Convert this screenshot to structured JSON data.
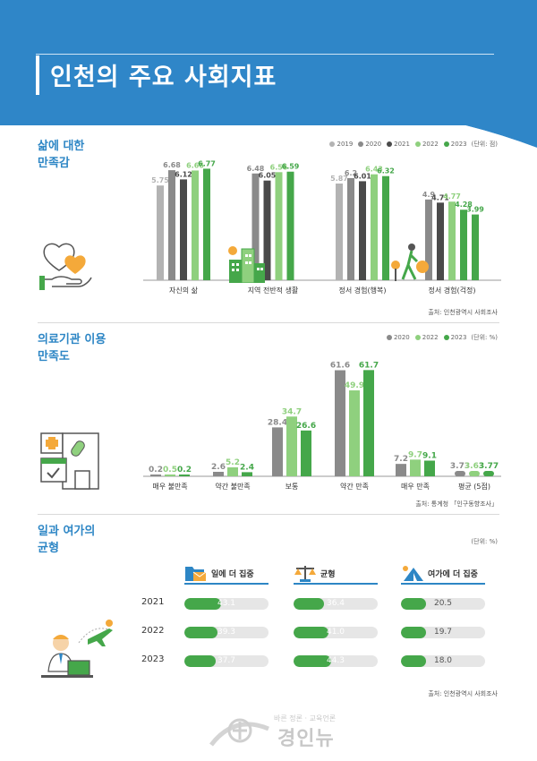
{
  "page_title": "인천의 주요 사회지표",
  "palette": {
    "c2019": "#b3b3b3",
    "c2020": "#8a8a8a",
    "c2021": "#4a4a4a",
    "c2022": "#8fd07e",
    "c2023": "#45a74a",
    "brand": "#2f86c8"
  },
  "sections": {
    "life": {
      "title_line1": "삶에 대한",
      "title_line2": "만족감",
      "unit": "(단위: 점)",
      "source": "출처: 인천광역시 사회조사"
    },
    "medical": {
      "title_line1": "의료기관 이용",
      "title_line2": "만족도",
      "unit": "(단위: %)",
      "source": "출처: 통계청 「인구동향조사」"
    },
    "worklife": {
      "title_line1": "일과 여가의",
      "title_line2": "균형",
      "unit": "(단위: %)",
      "source": "출처: 인천광역시 사회조사"
    }
  },
  "legend_life": [
    "2019",
    "2020",
    "2021",
    "2022",
    "2023"
  ],
  "legend_medical": [
    "2020",
    "2022",
    "2023"
  ],
  "chart_data": [
    {
      "type": "bar",
      "title": "삶에 대한 만족감",
      "unit": "(단위: 점)",
      "categories": [
        "자신의 삶",
        "지역 전반적 생활",
        "정서 경험(행복)",
        "정서 경험(걱정)"
      ],
      "series": [
        {
          "name": "2019",
          "values": [
            5.75,
            null,
            5.87,
            null
          ]
        },
        {
          "name": "2020",
          "values": [
            6.68,
            6.48,
            6.2,
            4.9
          ]
        },
        {
          "name": "2021",
          "values": [
            6.12,
            6.05,
            6.01,
            4.71
          ]
        },
        {
          "name": "2022",
          "values": [
            6.66,
            6.56,
            6.43,
            4.77
          ]
        },
        {
          "name": "2023",
          "values": [
            6.77,
            6.59,
            6.32,
            4.28
          ]
        }
      ],
      "extra_bar": {
        "category": "정서 경험(걱정)",
        "label": "3.99",
        "value": 3.99
      },
      "ylim": [
        0,
        7.5
      ],
      "grid": false,
      "legend": "top-right"
    },
    {
      "type": "bar",
      "title": "의료기관 이용 만족도",
      "unit": "(단위: %)",
      "categories": [
        "매우 불만족",
        "약간 불만족",
        "보통",
        "약간 만족",
        "매우 만족",
        "평균 (5점)"
      ],
      "series": [
        {
          "name": "2020",
          "values": [
            0.2,
            2.6,
            28.4,
            61.6,
            7.2,
            3.73
          ]
        },
        {
          "name": "2022",
          "values": [
            0.5,
            5.2,
            34.7,
            49.9,
            9.7,
            3.63
          ]
        },
        {
          "name": "2023",
          "values": [
            0.2,
            2.4,
            26.6,
            61.7,
            9.1,
            3.77
          ]
        }
      ],
      "ylim": [
        0,
        65
      ],
      "grid": false,
      "legend": "top-right"
    },
    {
      "type": "bar",
      "title": "일과 여가의 균형",
      "unit": "(단위: %)",
      "categories": [
        "일에 더 집중",
        "균형",
        "여가에 더 집중"
      ],
      "x": [
        "2021",
        "2022",
        "2023"
      ],
      "series": [
        {
          "name": "2021",
          "values": [
            43.1,
            36.4,
            20.5
          ]
        },
        {
          "name": "2022",
          "values": [
            39.3,
            41.0,
            19.7
          ]
        },
        {
          "name": "2023",
          "values": [
            37.7,
            44.3,
            18.0
          ]
        }
      ],
      "ylim": [
        0,
        100
      ],
      "legend": "none"
    }
  ],
  "worklife_labels": {
    "col1": "일에 더 집중",
    "col2": "균형",
    "col3": "여가에 더 집중",
    "years": [
      "2021",
      "2022",
      "2023"
    ],
    "values": [
      [
        "43.1",
        "36.4",
        "20.5"
      ],
      [
        "39.3",
        "41.0",
        "19.7"
      ],
      [
        "37.7",
        "44.3",
        "18.0"
      ]
    ]
  },
  "logo": {
    "sub": "바른 정론 · 교육언론",
    "name": "경인뉴"
  },
  "icons": [
    "heart-hand-icon",
    "city-icon",
    "person-walking-icon",
    "hospital-calendar-icon",
    "folder-mail-icon",
    "scale-icon",
    "tent-sun-icon",
    "office-worker-icon",
    "airplane-icon",
    "logo-icon"
  ]
}
